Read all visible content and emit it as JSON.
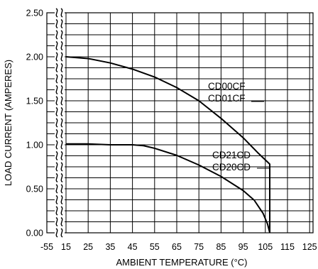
{
  "chart_data": {
    "type": "line",
    "title": "",
    "xlabel": "AMBIENT  TEMPERATURE (°C)",
    "ylabel": "LOAD CURRENT (AMPERES)",
    "x_ticks": [
      "-55",
      "15",
      "25",
      "35",
      "45",
      "55",
      "65",
      "75",
      "85",
      "95",
      "105",
      "115",
      "125"
    ],
    "y_ticks": [
      "0.00",
      "0.50",
      "1.00",
      "1.50",
      "2.00",
      "2.50"
    ],
    "xlim": [
      15,
      125
    ],
    "ylim": [
      0,
      2.5
    ],
    "x_axis_break": true,
    "grid": true,
    "series": [
      {
        "labels": [
          "CD00CF",
          "CD01CF"
        ],
        "points": [
          [
            15,
            2.0
          ],
          [
            25,
            1.98
          ],
          [
            35,
            1.93
          ],
          [
            45,
            1.86
          ],
          [
            55,
            1.77
          ],
          [
            65,
            1.65
          ],
          [
            75,
            1.5
          ],
          [
            85,
            1.3
          ],
          [
            95,
            1.08
          ],
          [
            102,
            0.9
          ],
          [
            107,
            0.78
          ],
          [
            107,
            0.0
          ]
        ]
      },
      {
        "labels": [
          "CD21CD",
          "CD20CD"
        ],
        "points": [
          [
            15,
            1.01
          ],
          [
            25,
            1.01
          ],
          [
            35,
            1.0
          ],
          [
            45,
            1.0
          ],
          [
            50,
            0.99
          ],
          [
            55,
            0.96
          ],
          [
            65,
            0.88
          ],
          [
            75,
            0.77
          ],
          [
            85,
            0.64
          ],
          [
            95,
            0.48
          ],
          [
            100,
            0.37
          ],
          [
            104,
            0.22
          ],
          [
            106,
            0.1
          ],
          [
            107,
            0.0
          ]
        ]
      }
    ]
  }
}
